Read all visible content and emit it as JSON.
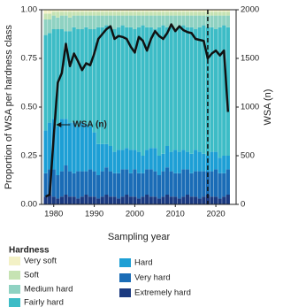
{
  "chart_data": {
    "type": "bar",
    "stacked": true,
    "ylabel": "Proportion of WSA per hardness class",
    "y2label": "WSA (n)",
    "xlabel": "Sampling year",
    "legend_title": "Hardness",
    "x": [
      1978,
      1979,
      1980,
      1981,
      1982,
      1983,
      1984,
      1985,
      1986,
      1987,
      1988,
      1989,
      1990,
      1991,
      1992,
      1993,
      1994,
      1995,
      1996,
      1997,
      1998,
      1999,
      2000,
      2001,
      2002,
      2003,
      2004,
      2005,
      2006,
      2007,
      2008,
      2009,
      2010,
      2011,
      2012,
      2013,
      2014,
      2015,
      2016,
      2017,
      2018,
      2019,
      2020,
      2021,
      2022,
      2023
    ],
    "xlim": [
      1977,
      2025
    ],
    "xticks": [
      1980,
      1990,
      2000,
      2010,
      2020
    ],
    "ylim": [
      0,
      1
    ],
    "yticks": [
      {
        "value": 0,
        "label": "0.00"
      },
      0.25,
      {
        "value": 0.5,
        "label": "0.50"
      },
      0.75,
      {
        "value": 1,
        "label": "1.00"
      }
    ],
    "y2lim": [
      0,
      2000
    ],
    "y2ticks": [
      0,
      500,
      1000,
      1500,
      2000
    ],
    "reference_line": 2018,
    "annotation": {
      "text": "WSA (n)",
      "x": 1981,
      "y": 1000
    },
    "series": [
      {
        "name": "Very soft",
        "color": "#f3f1c6",
        "values": [
          0.02,
          0.02,
          0.01,
          0.01,
          0.01,
          0.01,
          0.01,
          0.01,
          0.01,
          0.01,
          0.01,
          0.01,
          0.01,
          0.01,
          0.01,
          0.01,
          0.01,
          0.01,
          0.01,
          0.01,
          0.01,
          0.01,
          0.01,
          0.01,
          0.01,
          0.01,
          0.01,
          0.01,
          0.01,
          0.01,
          0.01,
          0.01,
          0.01,
          0.01,
          0.01,
          0.01,
          0.01,
          0.01,
          0.01,
          0.01,
          0.01,
          0.01,
          0.01,
          0.01,
          0.01,
          0.01
        ]
      },
      {
        "name": "Soft",
        "color": "#c6e3b3",
        "values": [
          0.03,
          0.03,
          0.02,
          0.03,
          0.02,
          0.02,
          0.03,
          0.02,
          0.02,
          0.02,
          0.02,
          0.02,
          0.02,
          0.02,
          0.02,
          0.02,
          0.02,
          0.02,
          0.02,
          0.02,
          0.02,
          0.02,
          0.02,
          0.02,
          0.02,
          0.02,
          0.02,
          0.02,
          0.02,
          0.02,
          0.02,
          0.02,
          0.02,
          0.02,
          0.02,
          0.02,
          0.02,
          0.02,
          0.02,
          0.02,
          0.02,
          0.02,
          0.02,
          0.02,
          0.02,
          0.02
        ]
      },
      {
        "name": "Medium hard",
        "color": "#8fd2c2",
        "values": [
          0.08,
          0.07,
          0.07,
          0.06,
          0.07,
          0.08,
          0.07,
          0.06,
          0.07,
          0.07,
          0.06,
          0.07,
          0.07,
          0.06,
          0.06,
          0.05,
          0.06,
          0.07,
          0.06,
          0.05,
          0.06,
          0.06,
          0.07,
          0.06,
          0.05,
          0.06,
          0.06,
          0.07,
          0.06,
          0.05,
          0.06,
          0.06,
          0.07,
          0.06,
          0.05,
          0.06,
          0.06,
          0.07,
          0.06,
          0.05,
          0.06,
          0.06,
          0.07,
          0.06,
          0.05,
          0.06
        ]
      },
      {
        "name": "Fairly hard",
        "color": "#3dbcc6",
        "values": [
          0.49,
          0.46,
          0.46,
          0.5,
          0.46,
          0.45,
          0.47,
          0.49,
          0.5,
          0.48,
          0.5,
          0.5,
          0.53,
          0.6,
          0.6,
          0.61,
          0.61,
          0.63,
          0.63,
          0.64,
          0.62,
          0.63,
          0.62,
          0.64,
          0.67,
          0.63,
          0.62,
          0.61,
          0.66,
          0.66,
          0.61,
          0.64,
          0.62,
          0.64,
          0.64,
          0.64,
          0.65,
          0.62,
          0.64,
          0.66,
          0.66,
          0.64,
          0.63,
          0.67,
          0.67,
          0.66
        ]
      },
      {
        "name": "Hard",
        "color": "#1d9fd5",
        "values": [
          0.22,
          0.24,
          0.26,
          0.25,
          0.27,
          0.24,
          0.25,
          0.26,
          0.23,
          0.25,
          0.24,
          0.22,
          0.2,
          0.16,
          0.14,
          0.12,
          0.13,
          0.11,
          0.12,
          0.1,
          0.11,
          0.12,
          0.1,
          0.11,
          0.09,
          0.1,
          0.11,
          0.12,
          0.1,
          0.09,
          0.11,
          0.1,
          0.12,
          0.11,
          0.1,
          0.09,
          0.1,
          0.11,
          0.1,
          0.09,
          0.08,
          0.1,
          0.09,
          0.08,
          0.09,
          0.07
        ]
      },
      {
        "name": "Very hard",
        "color": "#1a6cb6",
        "values": [
          0.12,
          0.13,
          0.14,
          0.12,
          0.13,
          0.15,
          0.13,
          0.12,
          0.14,
          0.13,
          0.12,
          0.14,
          0.13,
          0.12,
          0.13,
          0.14,
          0.13,
          0.12,
          0.13,
          0.14,
          0.13,
          0.12,
          0.14,
          0.13,
          0.12,
          0.13,
          0.14,
          0.13,
          0.12,
          0.13,
          0.14,
          0.13,
          0.12,
          0.13,
          0.14,
          0.13,
          0.12,
          0.13,
          0.14,
          0.13,
          0.12,
          0.13,
          0.14,
          0.13,
          0.12,
          0.13
        ]
      },
      {
        "name": "Extremely hard",
        "color": "#1b3a80",
        "values": [
          0.04,
          0.05,
          0.04,
          0.03,
          0.04,
          0.05,
          0.04,
          0.04,
          0.03,
          0.04,
          0.05,
          0.04,
          0.04,
          0.03,
          0.04,
          0.05,
          0.04,
          0.04,
          0.03,
          0.04,
          0.05,
          0.04,
          0.04,
          0.03,
          0.04,
          0.05,
          0.04,
          0.04,
          0.03,
          0.04,
          0.05,
          0.04,
          0.04,
          0.03,
          0.04,
          0.05,
          0.04,
          0.04,
          0.03,
          0.04,
          0.05,
          0.04,
          0.04,
          0.03,
          0.04,
          0.05
        ]
      }
    ],
    "line_series": {
      "name": "WSA (n)",
      "color": "#111111",
      "axis": "y2",
      "values": [
        80,
        100,
        700,
        1250,
        1350,
        1650,
        1420,
        1550,
        1470,
        1380,
        1450,
        1430,
        1550,
        1700,
        1750,
        1800,
        1830,
        1700,
        1730,
        1720,
        1700,
        1620,
        1560,
        1720,
        1680,
        1580,
        1700,
        1780,
        1730,
        1700,
        1760,
        1850,
        1780,
        1830,
        1790,
        1770,
        1760,
        1700,
        1690,
        1680,
        1500,
        1550,
        1580,
        1530,
        1580,
        950
      ]
    }
  }
}
